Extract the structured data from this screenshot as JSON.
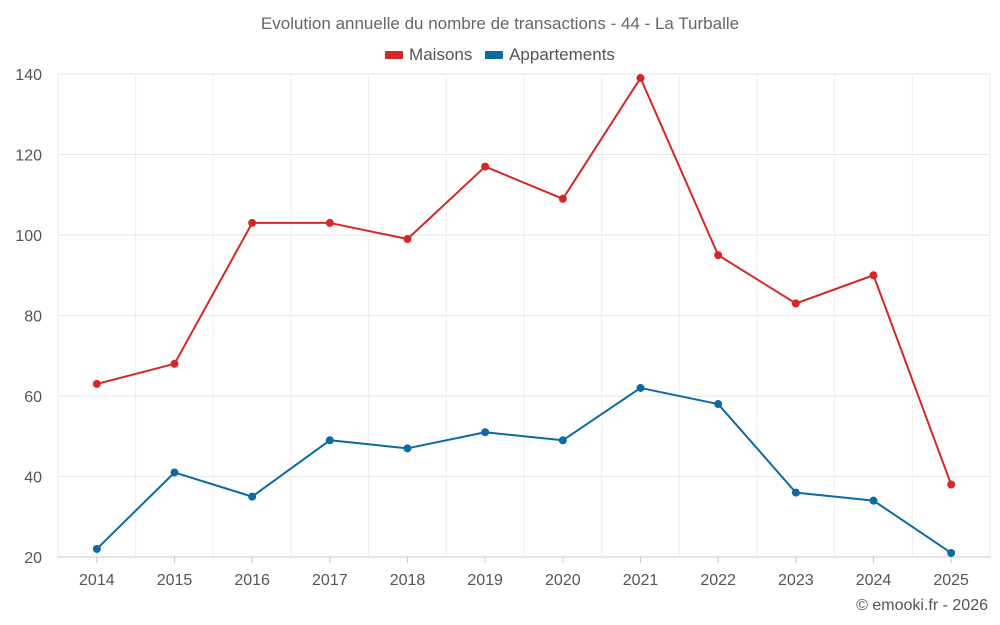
{
  "chart_data": {
    "type": "line",
    "title": "Evolution annuelle du nombre de transactions - 44 - La Turballe",
    "categories": [
      "2014",
      "2015",
      "2016",
      "2017",
      "2018",
      "2019",
      "2020",
      "2021",
      "2022",
      "2023",
      "2024",
      "2025"
    ],
    "series": [
      {
        "name": "Maisons",
        "color": "#d62728",
        "values": [
          63,
          68,
          103,
          103,
          99,
          117,
          109,
          139,
          95,
          83,
          90,
          38
        ]
      },
      {
        "name": "Appartements",
        "color": "#0a6aa1",
        "values": [
          22,
          41,
          35,
          49,
          47,
          51,
          49,
          62,
          58,
          36,
          34,
          21
        ]
      }
    ],
    "ylim": [
      20,
      140
    ],
    "yticks": [
      20,
      40,
      60,
      80,
      100,
      120,
      140
    ],
    "xlabel": "",
    "ylabel": "",
    "legend_position": "top-center",
    "grid": true
  },
  "credit": "© emooki.fr - 2026"
}
